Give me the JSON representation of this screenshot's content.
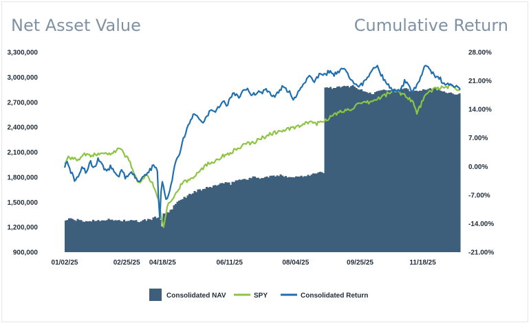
{
  "header": {
    "left_title": "Net Asset Value",
    "right_title": "Cumulative Return"
  },
  "colors": {
    "nav": "#3d5f7c",
    "spy": "#8dc443",
    "cons": "#1f6fb0"
  },
  "chart_data": {
    "type": "bar+line",
    "x_axis": {
      "tick_labels": [
        "01/02/25",
        "02/25/25",
        "04/18/25",
        "06/11/25",
        "08/04/25",
        "09/25/25",
        "11/18/25"
      ],
      "tick_fracs": [
        0.0,
        0.1569,
        0.2475,
        0.4169,
        0.584,
        0.747,
        0.9054
      ]
    },
    "y_left": {
      "min": 900000,
      "max": 3300000,
      "ticks": [
        900000,
        1200000,
        1500000,
        1800000,
        2100000,
        2400000,
        2700000,
        3000000,
        3300000
      ],
      "tick_labels": [
        "900,000",
        "1,200,000",
        "1,500,000",
        "1,800,000",
        "2,100,000",
        "2,400,000",
        "2,700,000",
        "3,000,000",
        "3,300,000"
      ]
    },
    "y_right": {
      "min": -21,
      "max": 28,
      "ticks": [
        -21,
        -14,
        -7,
        0,
        7,
        14,
        21,
        28
      ],
      "tick_labels": [
        "-21.00%",
        "-14.00%",
        "-7.00%",
        "0.00%",
        "7.00%",
        "14.00%",
        "21.00%",
        "28.00%"
      ]
    },
    "legend": [
      {
        "key": "nav",
        "label": "Consolidated NAV",
        "kind": "bar"
      },
      {
        "key": "spy",
        "label": "SPY",
        "kind": "line"
      },
      {
        "key": "cons",
        "label": "Consolidated Return",
        "kind": "line"
      }
    ],
    "series": [
      {
        "name": "Consolidated NAV",
        "kind": "bar",
        "axis": "left",
        "x_frac": [
          0.0,
          0.012,
          0.05,
          0.1,
          0.15,
          0.19,
          0.22,
          0.24,
          0.245,
          0.25,
          0.26,
          0.27,
          0.28,
          0.3,
          0.33,
          0.36,
          0.38,
          0.4,
          0.42,
          0.43,
          0.46,
          0.48,
          0.5,
          0.52,
          0.55,
          0.58,
          0.62,
          0.64,
          0.655,
          0.655,
          0.7,
          0.73,
          0.75,
          0.78,
          0.8,
          0.83,
          0.86,
          0.88,
          0.9,
          0.93,
          0.96,
          1.0
        ],
        "values": [
          1280000,
          1300000,
          1270000,
          1290000,
          1280000,
          1270000,
          1300000,
          1330000,
          1200000,
          1350000,
          1380000,
          1400000,
          1480000,
          1550000,
          1630000,
          1670000,
          1700000,
          1730000,
          1720000,
          1760000,
          1780000,
          1800000,
          1790000,
          1810000,
          1820000,
          1800000,
          1830000,
          1850000,
          1860000,
          2870000,
          2880000,
          2900000,
          2840000,
          2800000,
          2860000,
          2850000,
          2860000,
          2830000,
          2850000,
          2870000,
          2830000,
          2790000
        ]
      },
      {
        "name": "SPY",
        "kind": "line",
        "axis": "right",
        "x_frac": [
          0.0,
          0.01,
          0.03,
          0.05,
          0.07,
          0.09,
          0.11,
          0.13,
          0.14,
          0.15,
          0.16,
          0.17,
          0.18,
          0.19,
          0.2,
          0.21,
          0.22,
          0.23,
          0.24,
          0.245,
          0.25,
          0.255,
          0.26,
          0.27,
          0.28,
          0.29,
          0.3,
          0.32,
          0.34,
          0.36,
          0.38,
          0.4,
          0.42,
          0.44,
          0.46,
          0.48,
          0.5,
          0.52,
          0.54,
          0.56,
          0.58,
          0.6,
          0.62,
          0.64,
          0.66,
          0.68,
          0.7,
          0.72,
          0.74,
          0.76,
          0.78,
          0.8,
          0.82,
          0.84,
          0.86,
          0.88,
          0.89,
          0.9,
          0.91,
          0.92,
          0.94,
          0.96,
          0.98,
          1.0
        ],
        "values": [
          0.5,
          2.5,
          1.5,
          3.0,
          2.5,
          3.5,
          3.0,
          4.0,
          4.5,
          3.0,
          2.0,
          0.0,
          -3.0,
          -4.5,
          -2.5,
          -2.0,
          -4.0,
          -6.0,
          -9.0,
          -13.0,
          -15.0,
          -12.0,
          -9.0,
          -8.0,
          -7.0,
          -5.0,
          -4.0,
          -3.0,
          -1.0,
          0.5,
          1.5,
          2.5,
          3.5,
          4.5,
          5.5,
          6.0,
          7.0,
          8.0,
          8.5,
          9.0,
          9.5,
          10.0,
          11.0,
          10.5,
          11.5,
          12.5,
          13.5,
          14.0,
          15.0,
          15.5,
          16.0,
          17.0,
          18.0,
          18.5,
          17.5,
          16.0,
          13.0,
          15.0,
          17.0,
          18.0,
          19.5,
          19.0,
          20.0,
          18.5
        ]
      },
      {
        "name": "Consolidated Return",
        "kind": "line",
        "axis": "right",
        "x_frac": [
          0.0,
          0.005,
          0.015,
          0.025,
          0.035,
          0.045,
          0.055,
          0.065,
          0.075,
          0.085,
          0.095,
          0.105,
          0.115,
          0.125,
          0.135,
          0.145,
          0.155,
          0.165,
          0.175,
          0.185,
          0.195,
          0.205,
          0.215,
          0.225,
          0.235,
          0.24,
          0.245,
          0.25,
          0.255,
          0.26,
          0.27,
          0.28,
          0.29,
          0.3,
          0.31,
          0.32,
          0.33,
          0.34,
          0.35,
          0.36,
          0.37,
          0.38,
          0.39,
          0.4,
          0.41,
          0.42,
          0.43,
          0.44,
          0.45,
          0.46,
          0.47,
          0.48,
          0.49,
          0.5,
          0.51,
          0.52,
          0.53,
          0.54,
          0.55,
          0.56,
          0.57,
          0.58,
          0.59,
          0.6,
          0.61,
          0.62,
          0.63,
          0.64,
          0.65,
          0.66,
          0.67,
          0.68,
          0.69,
          0.7,
          0.71,
          0.72,
          0.73,
          0.74,
          0.75,
          0.76,
          0.77,
          0.78,
          0.79,
          0.8,
          0.81,
          0.82,
          0.83,
          0.84,
          0.85,
          0.86,
          0.87,
          0.88,
          0.89,
          0.9,
          0.91,
          0.92,
          0.93,
          0.94,
          0.95,
          0.96,
          0.97,
          0.98,
          0.99,
          1.0
        ],
        "values": [
          0.0,
          2.0,
          -1.0,
          -3.5,
          -2.0,
          0.0,
          -1.5,
          1.0,
          -0.5,
          2.0,
          0.5,
          -1.5,
          0.0,
          -1.0,
          -2.5,
          -1.0,
          -3.0,
          -1.5,
          -2.0,
          -3.5,
          -3.0,
          -2.0,
          -1.0,
          0.5,
          -1.5,
          -14.0,
          -3.0,
          -5.0,
          -8.0,
          -7.5,
          -4.0,
          1.0,
          3.0,
          6.5,
          9.5,
          12.0,
          13.0,
          12.0,
          11.0,
          12.5,
          14.0,
          13.0,
          14.5,
          16.0,
          15.0,
          17.0,
          18.0,
          17.0,
          18.5,
          19.0,
          18.0,
          17.5,
          18.5,
          18.0,
          19.0,
          18.0,
          17.0,
          18.0,
          19.5,
          19.0,
          18.0,
          16.5,
          18.0,
          20.0,
          21.0,
          22.5,
          21.0,
          22.0,
          23.0,
          22.5,
          23.5,
          22.5,
          23.0,
          24.0,
          23.5,
          22.0,
          21.0,
          19.5,
          20.0,
          21.0,
          22.0,
          24.0,
          25.0,
          22.5,
          21.0,
          20.0,
          18.0,
          19.0,
          18.5,
          21.0,
          19.5,
          18.0,
          20.0,
          22.0,
          24.5,
          24.0,
          23.0,
          22.0,
          21.5,
          20.0,
          20.5,
          20.0,
          19.5,
          19.0
        ]
      }
    ]
  }
}
